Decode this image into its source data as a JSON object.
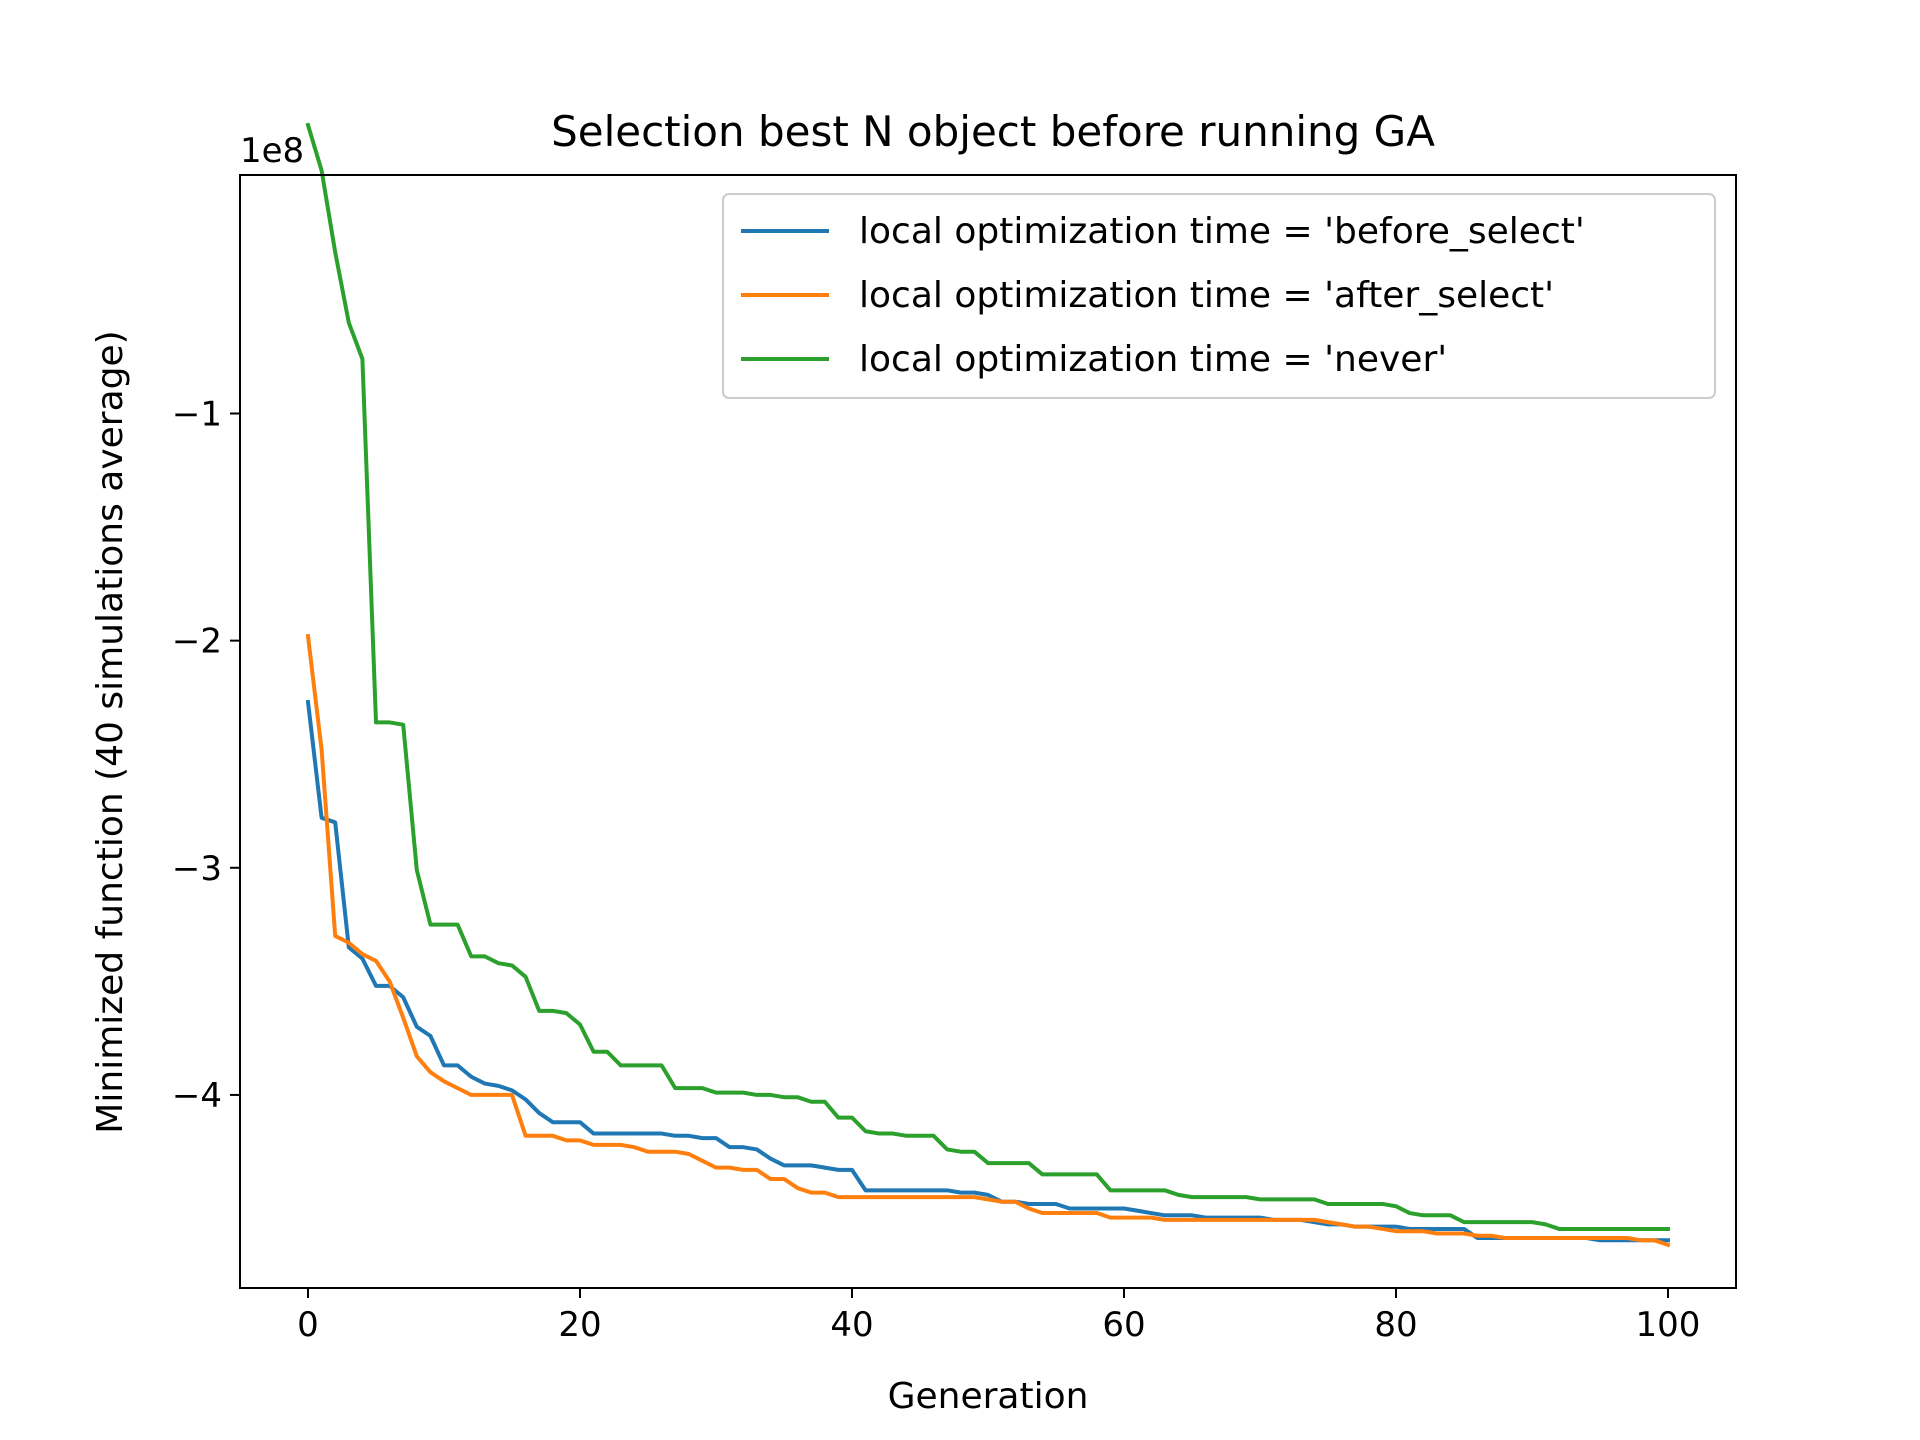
{
  "chart_data": {
    "type": "line",
    "title": "Selection best N object before running GA",
    "xlabel": "Generation",
    "ylabel": "Minimized function (40 simulations average)",
    "offset_label": "1e8",
    "xlim": [
      -5,
      105
    ],
    "ylim": [
      -4.85,
      0.05
    ],
    "xticks": [
      0,
      20,
      40,
      60,
      80,
      100
    ],
    "xtick_labels": [
      "0",
      "20",
      "40",
      "60",
      "80",
      "100"
    ],
    "yticks": [
      -1,
      -2,
      -3,
      -4
    ],
    "ytick_labels": [
      "−1",
      "−2",
      "−3",
      "−4"
    ],
    "grid": false,
    "legend_position": "top-right",
    "series": [
      {
        "name": "local optimization time = 'before_select'",
        "color": "#1f77b4",
        "points": [
          [
            0,
            -2.27
          ],
          [
            1,
            -2.78
          ],
          [
            2,
            -2.8
          ],
          [
            3,
            -3.35
          ],
          [
            4,
            -3.4
          ],
          [
            5,
            -3.52
          ],
          [
            6,
            -3.52
          ],
          [
            7,
            -3.57
          ],
          [
            8,
            -3.7
          ],
          [
            9,
            -3.74
          ],
          [
            10,
            -3.87
          ],
          [
            11,
            -3.87
          ],
          [
            12,
            -3.92
          ],
          [
            13,
            -3.95
          ],
          [
            14,
            -3.96
          ],
          [
            15,
            -3.98
          ],
          [
            16,
            -4.02
          ],
          [
            17,
            -4.08
          ],
          [
            18,
            -4.12
          ],
          [
            19,
            -4.12
          ],
          [
            20,
            -4.12
          ],
          [
            21,
            -4.17
          ],
          [
            22,
            -4.17
          ],
          [
            23,
            -4.17
          ],
          [
            24,
            -4.17
          ],
          [
            25,
            -4.17
          ],
          [
            26,
            -4.17
          ],
          [
            27,
            -4.18
          ],
          [
            28,
            -4.18
          ],
          [
            29,
            -4.19
          ],
          [
            30,
            -4.19
          ],
          [
            31,
            -4.23
          ],
          [
            32,
            -4.23
          ],
          [
            33,
            -4.24
          ],
          [
            34,
            -4.28
          ],
          [
            35,
            -4.31
          ],
          [
            36,
            -4.31
          ],
          [
            37,
            -4.31
          ],
          [
            38,
            -4.32
          ],
          [
            39,
            -4.33
          ],
          [
            40,
            -4.33
          ],
          [
            41,
            -4.42
          ],
          [
            42,
            -4.42
          ],
          [
            43,
            -4.42
          ],
          [
            44,
            -4.42
          ],
          [
            45,
            -4.42
          ],
          [
            46,
            -4.42
          ],
          [
            47,
            -4.42
          ],
          [
            48,
            -4.43
          ],
          [
            49,
            -4.43
          ],
          [
            50,
            -4.44
          ],
          [
            51,
            -4.47
          ],
          [
            52,
            -4.47
          ],
          [
            53,
            -4.48
          ],
          [
            54,
            -4.48
          ],
          [
            55,
            -4.48
          ],
          [
            56,
            -4.5
          ],
          [
            57,
            -4.5
          ],
          [
            58,
            -4.5
          ],
          [
            59,
            -4.5
          ],
          [
            60,
            -4.5
          ],
          [
            61,
            -4.51
          ],
          [
            62,
            -4.52
          ],
          [
            63,
            -4.53
          ],
          [
            64,
            -4.53
          ],
          [
            65,
            -4.53
          ],
          [
            66,
            -4.54
          ],
          [
            67,
            -4.54
          ],
          [
            68,
            -4.54
          ],
          [
            69,
            -4.54
          ],
          [
            70,
            -4.54
          ],
          [
            71,
            -4.55
          ],
          [
            72,
            -4.55
          ],
          [
            73,
            -4.55
          ],
          [
            74,
            -4.56
          ],
          [
            75,
            -4.57
          ],
          [
            76,
            -4.57
          ],
          [
            77,
            -4.58
          ],
          [
            78,
            -4.58
          ],
          [
            79,
            -4.58
          ],
          [
            80,
            -4.58
          ],
          [
            81,
            -4.59
          ],
          [
            82,
            -4.59
          ],
          [
            83,
            -4.59
          ],
          [
            84,
            -4.59
          ],
          [
            85,
            -4.59
          ],
          [
            86,
            -4.63
          ],
          [
            87,
            -4.63
          ],
          [
            88,
            -4.63
          ],
          [
            89,
            -4.63
          ],
          [
            90,
            -4.63
          ],
          [
            91,
            -4.63
          ],
          [
            92,
            -4.63
          ],
          [
            93,
            -4.63
          ],
          [
            94,
            -4.63
          ],
          [
            95,
            -4.64
          ],
          [
            96,
            -4.64
          ],
          [
            97,
            -4.64
          ],
          [
            98,
            -4.64
          ],
          [
            99,
            -4.64
          ],
          [
            100,
            -4.64
          ]
        ]
      },
      {
        "name": "local optimization time = 'after_select'",
        "color": "#ff7f0e",
        "points": [
          [
            0,
            -1.98
          ],
          [
            1,
            -2.48
          ],
          [
            2,
            -3.3
          ],
          [
            3,
            -3.33
          ],
          [
            4,
            -3.38
          ],
          [
            5,
            -3.41
          ],
          [
            6,
            -3.5
          ],
          [
            7,
            -3.66
          ],
          [
            8,
            -3.83
          ],
          [
            9,
            -3.9
          ],
          [
            10,
            -3.94
          ],
          [
            11,
            -3.97
          ],
          [
            12,
            -4.0
          ],
          [
            13,
            -4.0
          ],
          [
            14,
            -4.0
          ],
          [
            15,
            -4.0
          ],
          [
            16,
            -4.18
          ],
          [
            17,
            -4.18
          ],
          [
            18,
            -4.18
          ],
          [
            19,
            -4.2
          ],
          [
            20,
            -4.2
          ],
          [
            21,
            -4.22
          ],
          [
            22,
            -4.22
          ],
          [
            23,
            -4.22
          ],
          [
            24,
            -4.23
          ],
          [
            25,
            -4.25
          ],
          [
            26,
            -4.25
          ],
          [
            27,
            -4.25
          ],
          [
            28,
            -4.26
          ],
          [
            29,
            -4.29
          ],
          [
            30,
            -4.32
          ],
          [
            31,
            -4.32
          ],
          [
            32,
            -4.33
          ],
          [
            33,
            -4.33
          ],
          [
            34,
            -4.37
          ],
          [
            35,
            -4.37
          ],
          [
            36,
            -4.41
          ],
          [
            37,
            -4.43
          ],
          [
            38,
            -4.43
          ],
          [
            39,
            -4.45
          ],
          [
            40,
            -4.45
          ],
          [
            41,
            -4.45
          ],
          [
            42,
            -4.45
          ],
          [
            43,
            -4.45
          ],
          [
            44,
            -4.45
          ],
          [
            45,
            -4.45
          ],
          [
            46,
            -4.45
          ],
          [
            47,
            -4.45
          ],
          [
            48,
            -4.45
          ],
          [
            49,
            -4.45
          ],
          [
            50,
            -4.46
          ],
          [
            51,
            -4.47
          ],
          [
            52,
            -4.47
          ],
          [
            53,
            -4.5
          ],
          [
            54,
            -4.52
          ],
          [
            55,
            -4.52
          ],
          [
            56,
            -4.52
          ],
          [
            57,
            -4.52
          ],
          [
            58,
            -4.52
          ],
          [
            59,
            -4.54
          ],
          [
            60,
            -4.54
          ],
          [
            61,
            -4.54
          ],
          [
            62,
            -4.54
          ],
          [
            63,
            -4.55
          ],
          [
            64,
            -4.55
          ],
          [
            65,
            -4.55
          ],
          [
            66,
            -4.55
          ],
          [
            67,
            -4.55
          ],
          [
            68,
            -4.55
          ],
          [
            69,
            -4.55
          ],
          [
            70,
            -4.55
          ],
          [
            71,
            -4.55
          ],
          [
            72,
            -4.55
          ],
          [
            73,
            -4.55
          ],
          [
            74,
            -4.55
          ],
          [
            75,
            -4.56
          ],
          [
            76,
            -4.57
          ],
          [
            77,
            -4.58
          ],
          [
            78,
            -4.58
          ],
          [
            79,
            -4.59
          ],
          [
            80,
            -4.6
          ],
          [
            81,
            -4.6
          ],
          [
            82,
            -4.6
          ],
          [
            83,
            -4.61
          ],
          [
            84,
            -4.61
          ],
          [
            85,
            -4.61
          ],
          [
            86,
            -4.62
          ],
          [
            87,
            -4.62
          ],
          [
            88,
            -4.63
          ],
          [
            89,
            -4.63
          ],
          [
            90,
            -4.63
          ],
          [
            91,
            -4.63
          ],
          [
            92,
            -4.63
          ],
          [
            93,
            -4.63
          ],
          [
            94,
            -4.63
          ],
          [
            95,
            -4.63
          ],
          [
            96,
            -4.63
          ],
          [
            97,
            -4.63
          ],
          [
            98,
            -4.64
          ],
          [
            99,
            -4.64
          ],
          [
            100,
            -4.66
          ]
        ]
      },
      {
        "name": "local optimization time = 'never'",
        "color": "#2ca02c",
        "points": [
          [
            0,
            0.27
          ],
          [
            1,
            0.07
          ],
          [
            2,
            -0.29
          ],
          [
            3,
            -0.6
          ],
          [
            4,
            -0.76
          ],
          [
            5,
            -2.36
          ],
          [
            6,
            -2.36
          ],
          [
            7,
            -2.37
          ],
          [
            8,
            -3.01
          ],
          [
            9,
            -3.25
          ],
          [
            10,
            -3.25
          ],
          [
            11,
            -3.25
          ],
          [
            12,
            -3.39
          ],
          [
            13,
            -3.39
          ],
          [
            14,
            -3.42
          ],
          [
            15,
            -3.43
          ],
          [
            16,
            -3.48
          ],
          [
            17,
            -3.63
          ],
          [
            18,
            -3.63
          ],
          [
            19,
            -3.64
          ],
          [
            20,
            -3.69
          ],
          [
            21,
            -3.81
          ],
          [
            22,
            -3.81
          ],
          [
            23,
            -3.87
          ],
          [
            24,
            -3.87
          ],
          [
            25,
            -3.87
          ],
          [
            26,
            -3.87
          ],
          [
            27,
            -3.97
          ],
          [
            28,
            -3.97
          ],
          [
            29,
            -3.97
          ],
          [
            30,
            -3.99
          ],
          [
            31,
            -3.99
          ],
          [
            32,
            -3.99
          ],
          [
            33,
            -4.0
          ],
          [
            34,
            -4.0
          ],
          [
            35,
            -4.01
          ],
          [
            36,
            -4.01
          ],
          [
            37,
            -4.03
          ],
          [
            38,
            -4.03
          ],
          [
            39,
            -4.1
          ],
          [
            40,
            -4.1
          ],
          [
            41,
            -4.16
          ],
          [
            42,
            -4.17
          ],
          [
            43,
            -4.17
          ],
          [
            44,
            -4.18
          ],
          [
            45,
            -4.18
          ],
          [
            46,
            -4.18
          ],
          [
            47,
            -4.24
          ],
          [
            48,
            -4.25
          ],
          [
            49,
            -4.25
          ],
          [
            50,
            -4.3
          ],
          [
            51,
            -4.3
          ],
          [
            52,
            -4.3
          ],
          [
            53,
            -4.3
          ],
          [
            54,
            -4.35
          ],
          [
            55,
            -4.35
          ],
          [
            56,
            -4.35
          ],
          [
            57,
            -4.35
          ],
          [
            58,
            -4.35
          ],
          [
            59,
            -4.42
          ],
          [
            60,
            -4.42
          ],
          [
            61,
            -4.42
          ],
          [
            62,
            -4.42
          ],
          [
            63,
            -4.42
          ],
          [
            64,
            -4.44
          ],
          [
            65,
            -4.45
          ],
          [
            66,
            -4.45
          ],
          [
            67,
            -4.45
          ],
          [
            68,
            -4.45
          ],
          [
            69,
            -4.45
          ],
          [
            70,
            -4.46
          ],
          [
            71,
            -4.46
          ],
          [
            72,
            -4.46
          ],
          [
            73,
            -4.46
          ],
          [
            74,
            -4.46
          ],
          [
            75,
            -4.48
          ],
          [
            76,
            -4.48
          ],
          [
            77,
            -4.48
          ],
          [
            78,
            -4.48
          ],
          [
            79,
            -4.48
          ],
          [
            80,
            -4.49
          ],
          [
            81,
            -4.52
          ],
          [
            82,
            -4.53
          ],
          [
            83,
            -4.53
          ],
          [
            84,
            -4.53
          ],
          [
            85,
            -4.56
          ],
          [
            86,
            -4.56
          ],
          [
            87,
            -4.56
          ],
          [
            88,
            -4.56
          ],
          [
            89,
            -4.56
          ],
          [
            90,
            -4.56
          ],
          [
            91,
            -4.57
          ],
          [
            92,
            -4.59
          ],
          [
            93,
            -4.59
          ],
          [
            94,
            -4.59
          ],
          [
            95,
            -4.59
          ],
          [
            96,
            -4.59
          ],
          [
            97,
            -4.59
          ],
          [
            98,
            -4.59
          ],
          [
            99,
            -4.59
          ],
          [
            100,
            -4.59
          ]
        ]
      }
    ]
  }
}
